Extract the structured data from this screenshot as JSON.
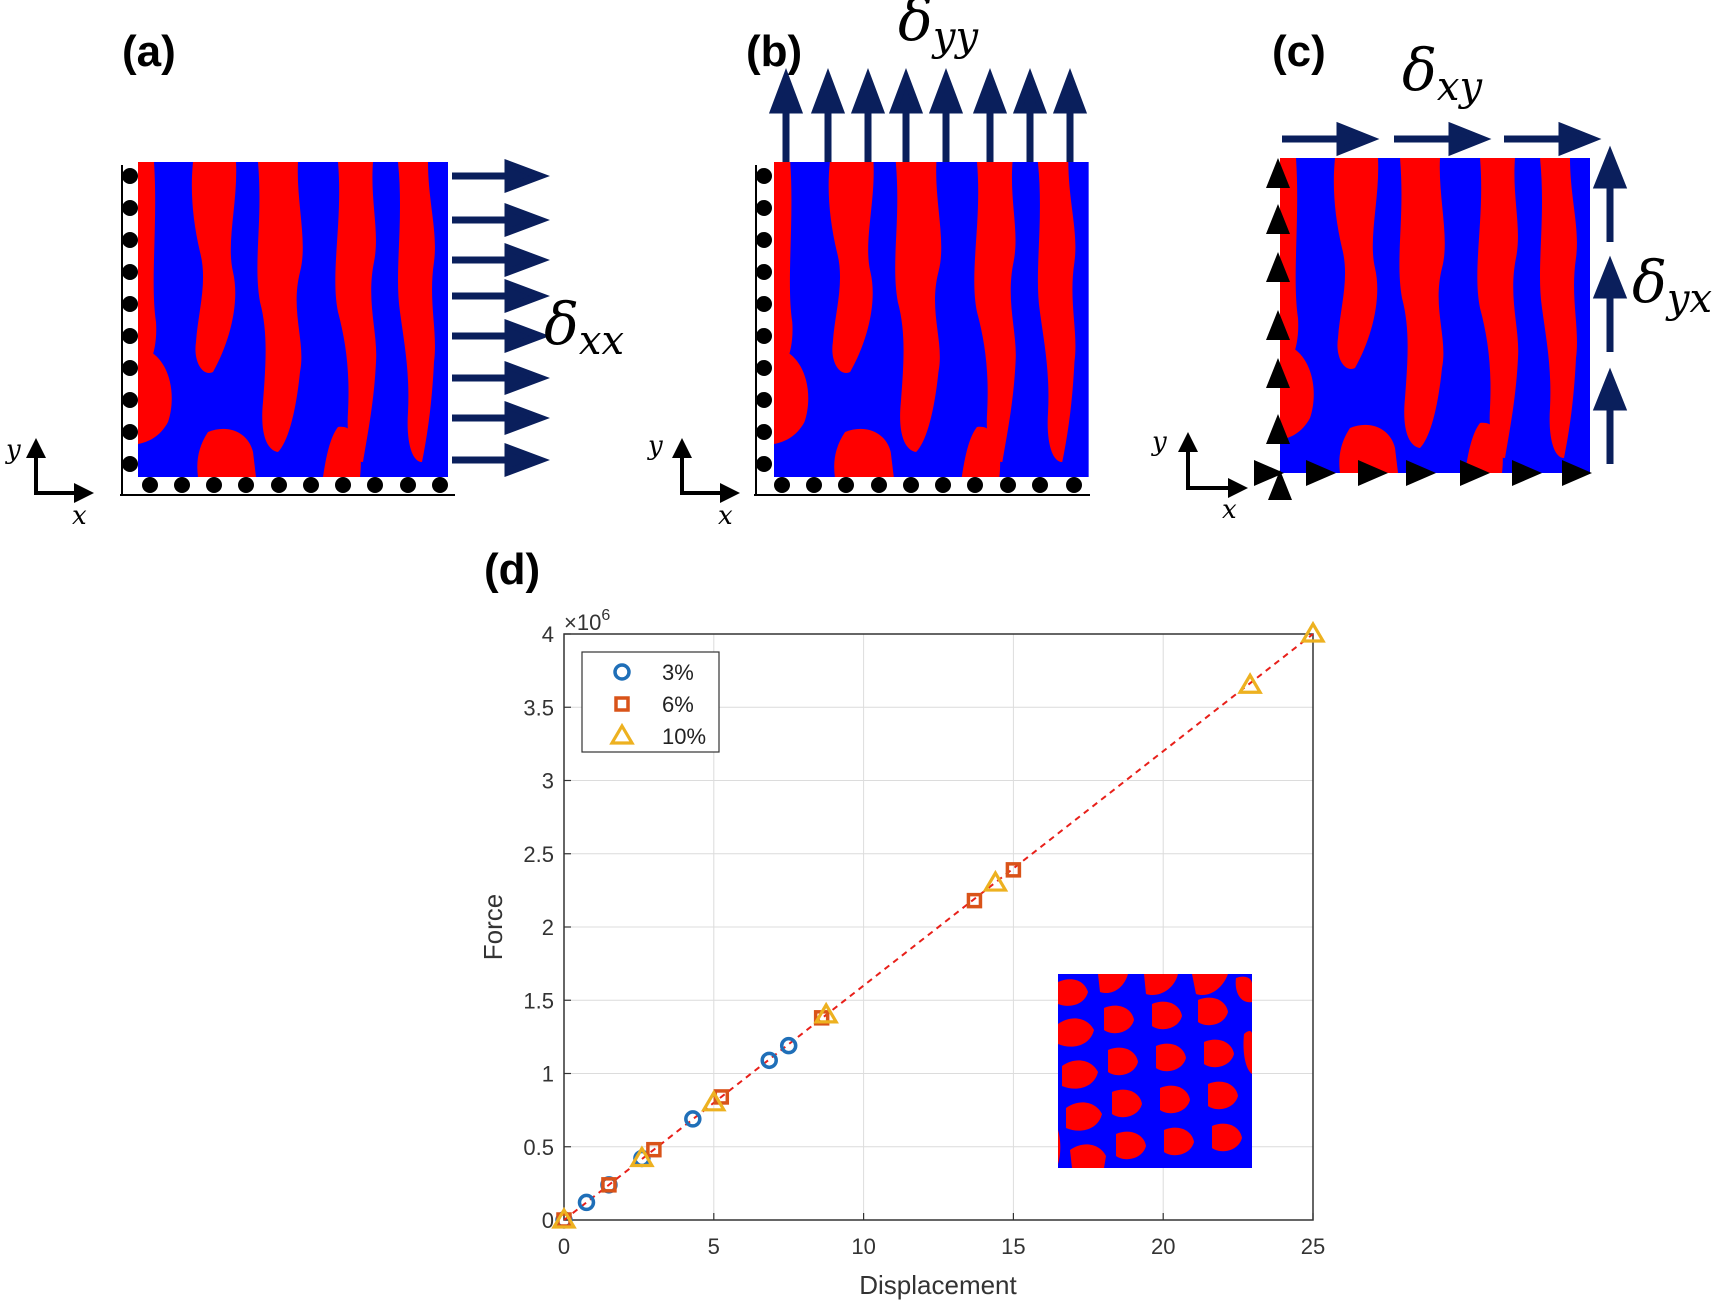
{
  "panels": {
    "a": {
      "label": "(a)",
      "delta": "δ",
      "sub": "xx"
    },
    "b": {
      "label": "(b)",
      "delta": "δ",
      "sub": "yy"
    },
    "c": {
      "label": "(c)",
      "delta_top": "δ",
      "sub_top": "xy",
      "delta_right": "δ",
      "sub_right": "yx"
    },
    "d": {
      "label": "(d)"
    }
  },
  "axis_letters": {
    "x": "x",
    "y": "y"
  },
  "colors": {
    "red": "#ff0000",
    "blue": "#0000ff",
    "arrow": "#0a1f5c",
    "trend": "#e8201a",
    "s3": "#1f6fb8",
    "s6": "#d95319",
    "s10": "#edb120"
  },
  "chart_data": {
    "type": "scatter",
    "xlabel": "Displacement",
    "ylabel": "Force",
    "exponent_label": "×10",
    "exponent": "6",
    "xlim": [
      0,
      25
    ],
    "ylim": [
      0,
      4
    ],
    "xticks": [
      0,
      5,
      10,
      15,
      20,
      25
    ],
    "yticks": [
      0,
      0.5,
      1,
      1.5,
      2,
      2.5,
      3,
      3.5,
      4
    ],
    "grid": true,
    "legend_position": "top-left",
    "series": [
      {
        "name": "3%",
        "marker": "circle",
        "color": "#1f6fb8",
        "x": [
          0,
          0.75,
          1.5,
          2.6,
          4.3,
          6.85,
          7.5
        ],
        "y": [
          0,
          0.12,
          0.24,
          0.42,
          0.69,
          1.09,
          1.19
        ]
      },
      {
        "name": "6%",
        "marker": "square",
        "color": "#d95319",
        "x": [
          0,
          1.5,
          3.0,
          5.25,
          8.6,
          13.7,
          15.0
        ],
        "y": [
          0,
          0.24,
          0.48,
          0.84,
          1.38,
          2.18,
          2.39
        ]
      },
      {
        "name": "10%",
        "marker": "triangle",
        "color": "#edb120",
        "x": [
          0,
          2.6,
          5.0,
          8.75,
          14.4,
          22.9,
          25.0
        ],
        "y": [
          0,
          0.42,
          0.8,
          1.4,
          2.3,
          3.65,
          4.0
        ]
      }
    ],
    "trend_line": {
      "style": "dashed",
      "color": "#e8201a",
      "x": [
        0,
        25
      ],
      "y": [
        0,
        4.0
      ]
    }
  }
}
